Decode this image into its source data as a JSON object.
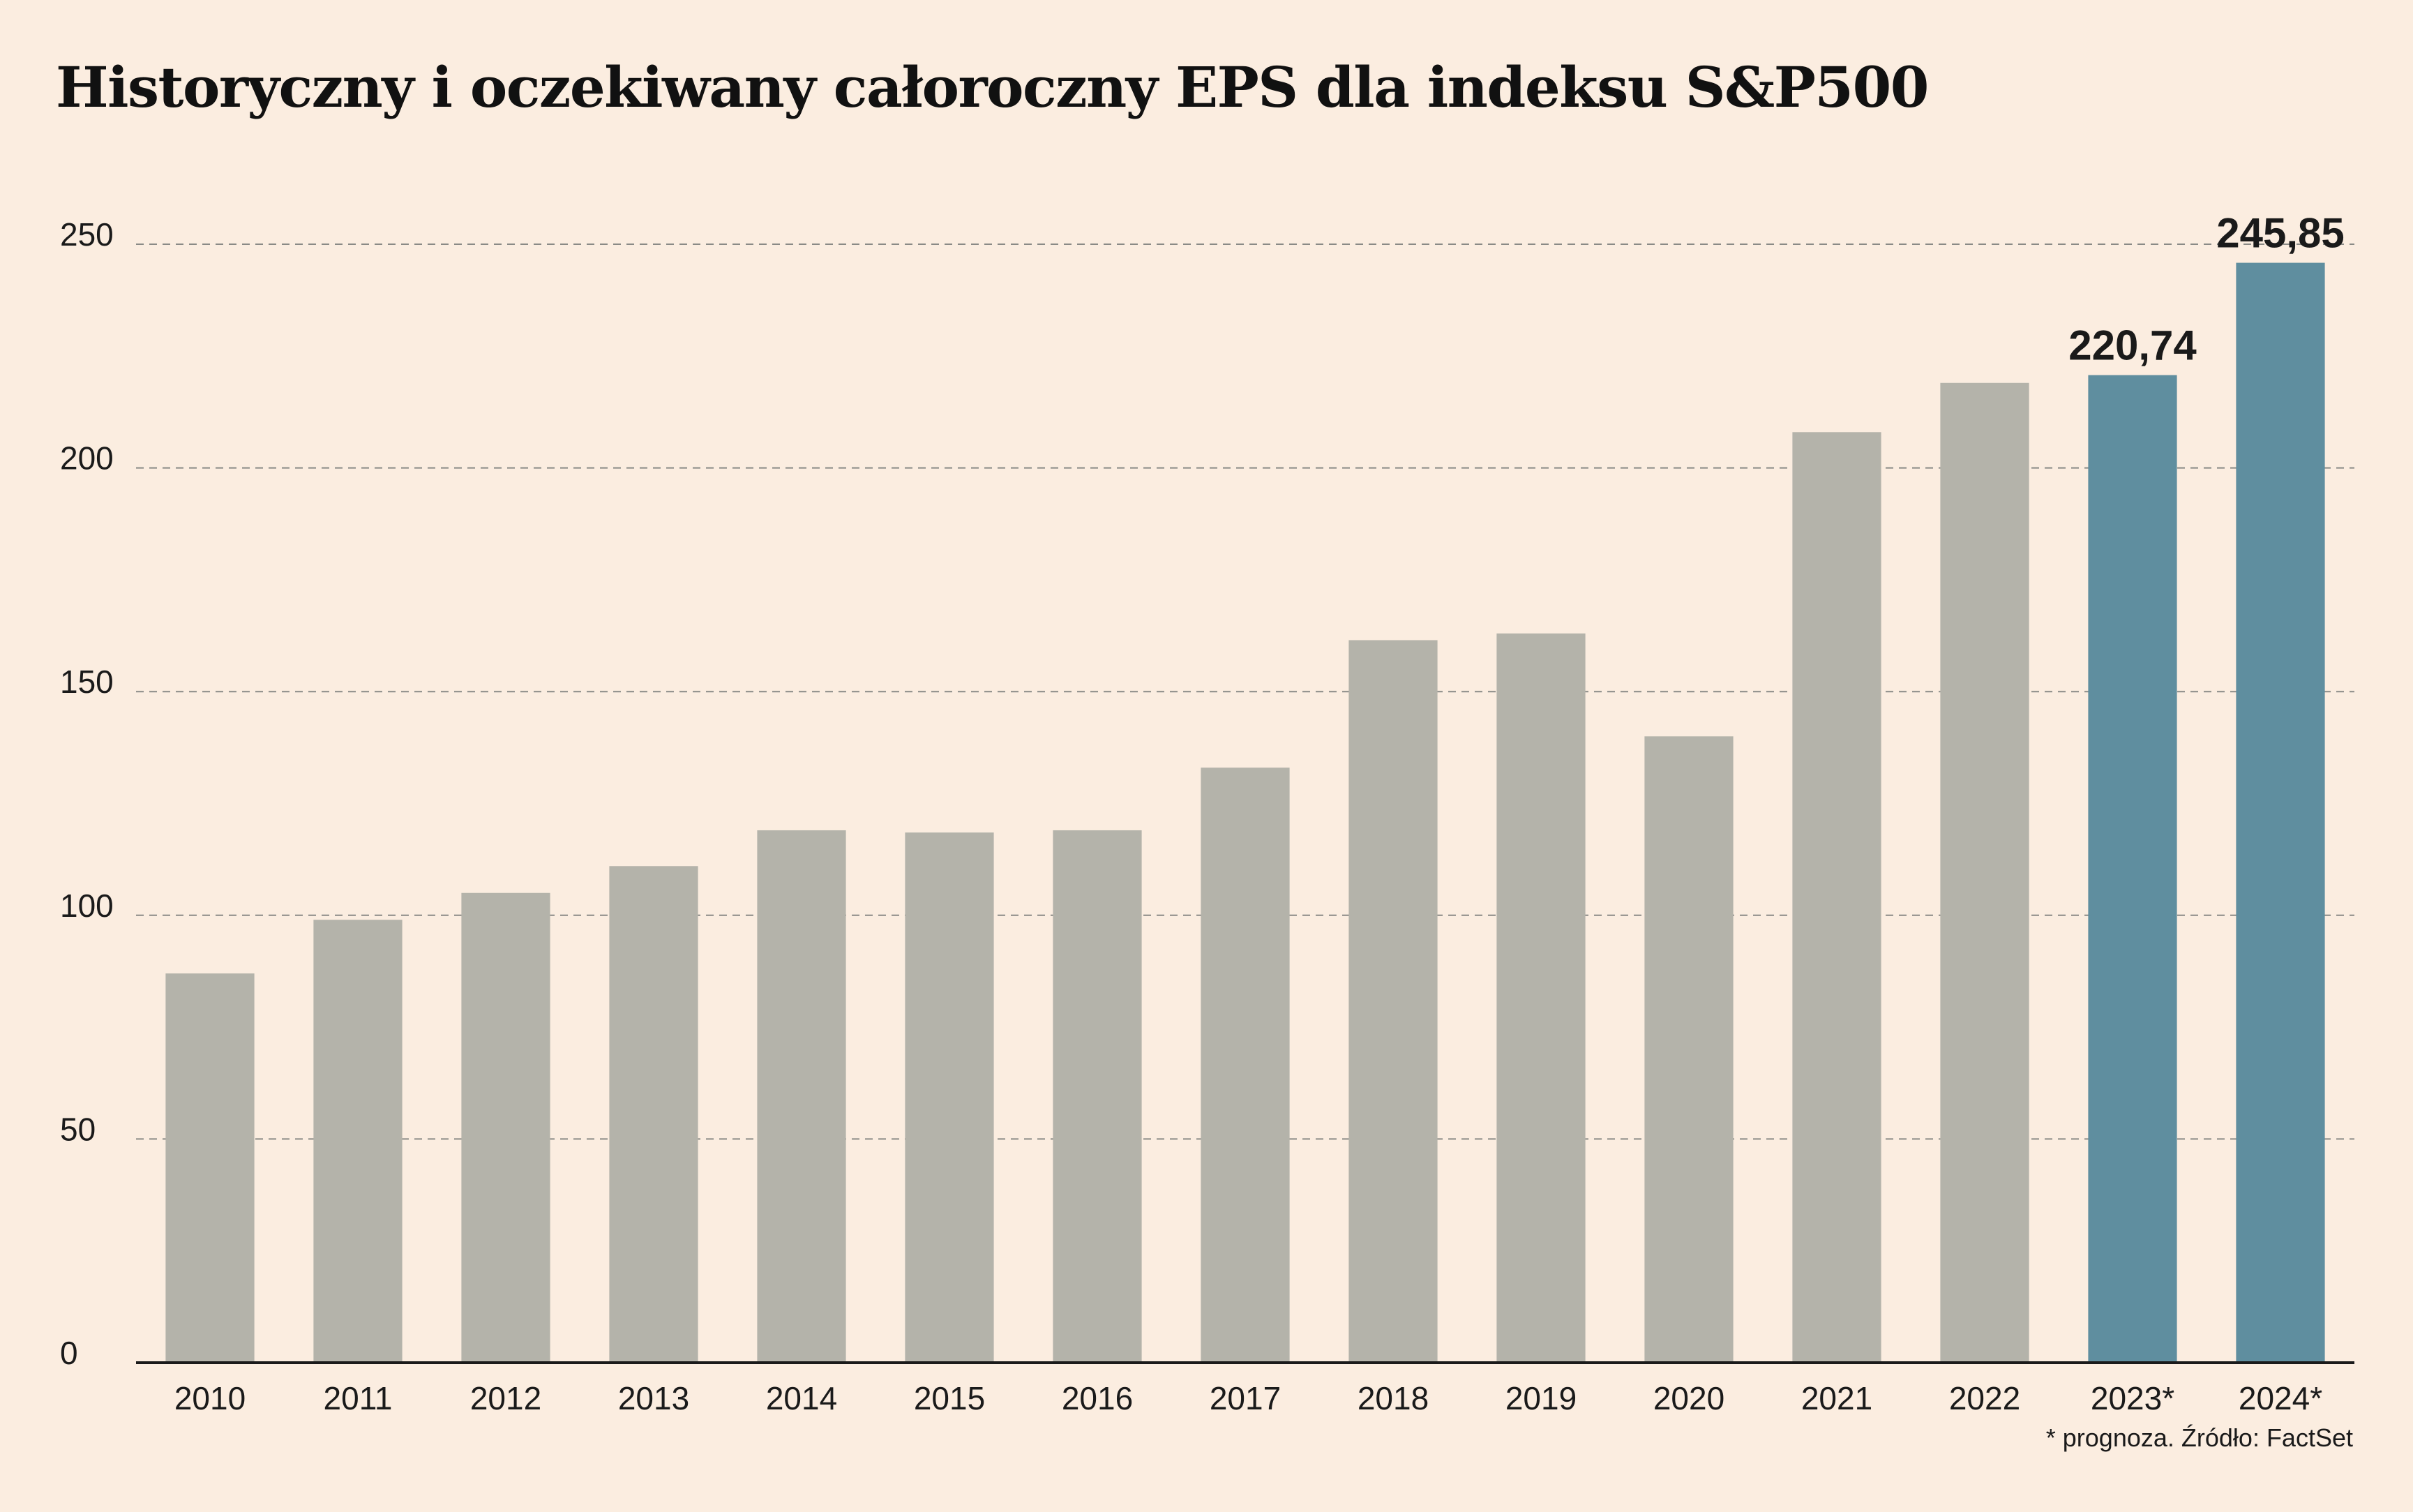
{
  "page": {
    "background": "#fbede0"
  },
  "chart_data": {
    "type": "bar",
    "title": "Historyczny i oczekiwany całoroczny EPS dla indeksu S&P500",
    "xlabel": "",
    "ylabel": "",
    "categories": [
      "2010",
      "2011",
      "2012",
      "2013",
      "2014",
      "2015",
      "2016",
      "2017",
      "2018",
      "2019",
      "2020",
      "2021",
      "2022",
      "2023*",
      "2024*"
    ],
    "values": [
      87,
      99,
      105,
      111,
      119,
      118.5,
      119,
      133,
      161.5,
      163,
      140,
      208,
      219,
      220.74,
      245.85
    ],
    "forecast": [
      false,
      false,
      false,
      false,
      false,
      false,
      false,
      false,
      false,
      false,
      false,
      false,
      false,
      true,
      true
    ],
    "data_labels": [
      "",
      "",
      "",
      "",
      "",
      "",
      "",
      "",
      "",
      "",
      "",
      "",
      "",
      "220,74",
      "245,85"
    ],
    "ylim": [
      0,
      250
    ],
    "yticks": [
      0,
      50,
      100,
      150,
      200,
      250
    ],
    "grid": true,
    "legend": "none",
    "colors": {
      "historical": "#b4b3aa",
      "forecast": "#5f8e9f",
      "grid": "#8a8a86",
      "axis": "#1a1a1a"
    },
    "footnote": "* prognoza. Źródło: FactSet"
  }
}
